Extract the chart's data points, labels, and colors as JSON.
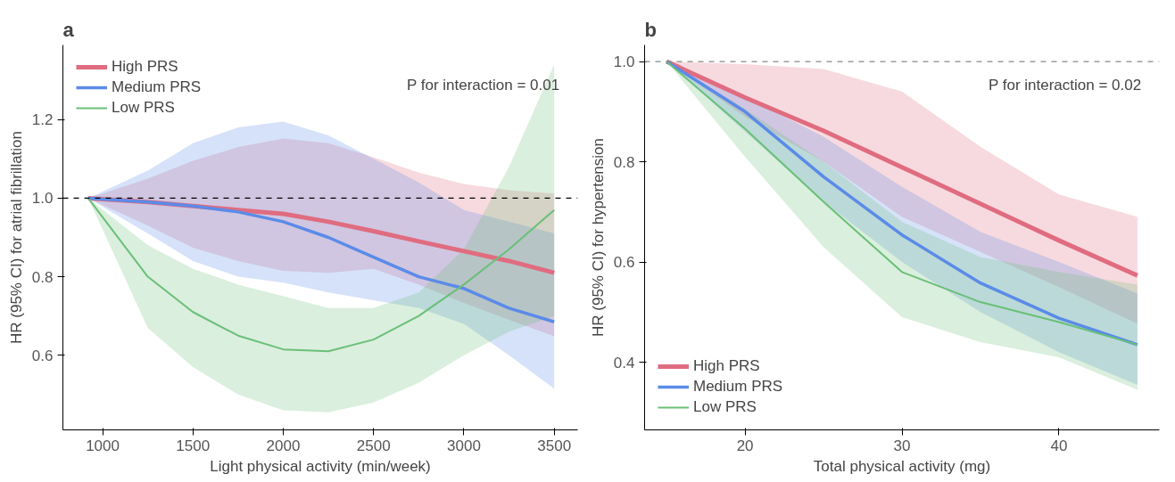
{
  "chart_data": [
    {
      "type": "line",
      "title": "a",
      "xlabel": "Light physical activity (min/week)",
      "ylabel": "HR (95% CI) for atrial fibrillation",
      "x": [
        920,
        1250,
        1500,
        1750,
        2000,
        2250,
        2500,
        2750,
        3000,
        3250,
        3500
      ],
      "xlim": [
        780,
        3630
      ],
      "xticks": [
        1000,
        1500,
        2000,
        2500,
        3000,
        3500
      ],
      "ylim": [
        0.41,
        1.39
      ],
      "yticks": [
        0.6,
        0.8,
        {
          "value": 1,
          "label": "1.0"
        },
        1.2
      ],
      "grid": false,
      "legend": "top left",
      "annotations": [
        "P for interaction = 0.01"
      ],
      "ref_lines": [
        {
          "axis": "y",
          "value": 1,
          "color": "#000000",
          "line_style": "dashed"
        }
      ],
      "series": [
        {
          "name": "High PRS",
          "color": "#e06c80",
          "values": [
            1.0,
            0.99,
            0.98,
            0.97,
            0.96,
            0.94,
            0.916,
            0.89,
            0.865,
            0.84,
            0.81
          ],
          "lower": [
            1.0,
            0.93,
            0.874,
            0.84,
            0.815,
            0.81,
            0.82,
            0.78,
            0.733,
            0.69,
            0.648
          ],
          "upper": [
            1.0,
            1.05,
            1.095,
            1.13,
            1.152,
            1.14,
            1.104,
            1.065,
            1.036,
            1.02,
            1.012
          ]
        },
        {
          "name": "Medium PRS",
          "color": "#5b8be8",
          "values": [
            1.0,
            0.99,
            0.98,
            0.965,
            0.94,
            0.9,
            0.85,
            0.8,
            0.77,
            0.72,
            0.685
          ],
          "lower": [
            1.0,
            0.91,
            0.84,
            0.8,
            0.785,
            0.76,
            0.74,
            0.72,
            0.68,
            0.6,
            0.515
          ],
          "upper": [
            1.0,
            1.07,
            1.14,
            1.18,
            1.195,
            1.16,
            1.1,
            1.04,
            0.97,
            0.94,
            0.91
          ]
        },
        {
          "name": "Low PRS",
          "color": "#6abf78",
          "values": [
            1.0,
            0.8,
            0.71,
            0.65,
            0.615,
            0.61,
            0.64,
            0.7,
            0.78,
            0.87,
            0.97
          ],
          "lower": [
            1.0,
            0.67,
            0.57,
            0.5,
            0.46,
            0.455,
            0.48,
            0.53,
            0.6,
            0.66,
            0.7
          ],
          "upper": [
            1.0,
            0.88,
            0.82,
            0.78,
            0.75,
            0.72,
            0.72,
            0.76,
            0.87,
            1.08,
            1.34
          ]
        }
      ]
    },
    {
      "type": "line",
      "title": "b",
      "xlabel": "Total physical activity (mg)",
      "ylabel": "HR (95% CI) for hypertension",
      "x": [
        15,
        20,
        25,
        30,
        35,
        40,
        45
      ],
      "xlim": [
        13.6,
        46.4
      ],
      "xticks": [
        20,
        30,
        40
      ],
      "ylim": [
        0.265,
        1.033
      ],
      "yticks": [
        0.4,
        0.6,
        0.8,
        {
          "value": 1,
          "label": "1.0"
        }
      ],
      "grid": false,
      "legend": "bottom left",
      "annotations": [
        "P for interaction = 0.02"
      ],
      "ref_lines": [
        {
          "axis": "y",
          "value": 1,
          "color": "#888888",
          "line_style": "dashed"
        }
      ],
      "series": [
        {
          "name": "High PRS",
          "color": "#e06c80",
          "values": [
            1.0,
            0.928,
            0.862,
            0.789,
            0.716,
            0.643,
            0.573
          ],
          "lower": [
            1.0,
            0.89,
            0.8,
            0.69,
            0.62,
            0.55,
            0.477
          ],
          "upper": [
            1.0,
            0.995,
            0.985,
            0.94,
            0.83,
            0.735,
            0.69
          ]
        },
        {
          "name": "Medium PRS",
          "color": "#5b8be8",
          "values": [
            1.0,
            0.9,
            0.77,
            0.654,
            0.558,
            0.488,
            0.435
          ],
          "lower": [
            1.0,
            0.86,
            0.72,
            0.6,
            0.5,
            0.42,
            0.355
          ],
          "upper": [
            1.0,
            0.93,
            0.85,
            0.75,
            0.66,
            0.6,
            0.537
          ]
        },
        {
          "name": "Low PRS",
          "color": "#6abf78",
          "values": [
            1.0,
            0.866,
            0.72,
            0.58,
            0.52,
            0.48,
            0.435
          ],
          "lower": [
            1.0,
            0.81,
            0.63,
            0.49,
            0.44,
            0.41,
            0.345
          ],
          "upper": [
            1.0,
            0.905,
            0.8,
            0.68,
            0.61,
            0.58,
            0.555
          ]
        }
      ]
    }
  ]
}
